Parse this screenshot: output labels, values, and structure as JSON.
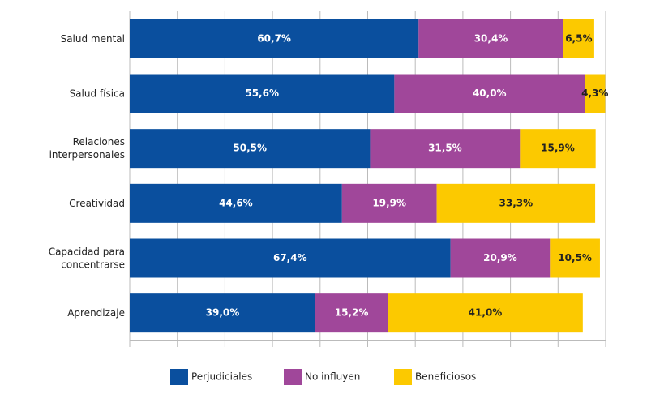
{
  "chart_data": {
    "type": "stacked_barh",
    "categories": [
      [
        "Salud mental"
      ],
      [
        "Salud física"
      ],
      [
        "Relaciones",
        "interpersonales"
      ],
      [
        "Creatividad"
      ],
      [
        "Capacidad para",
        "concentrarse"
      ],
      [
        "Aprendizaje"
      ]
    ],
    "series": [
      {
        "name": "Perjudiciales",
        "color": "#0a4f9e",
        "values": [
          60.7,
          55.6,
          50.5,
          44.6,
          67.4,
          39.0
        ],
        "value_labels": [
          "60,7%",
          "55,6%",
          "50,5%",
          "44,6%",
          "67,4%",
          "39,0%"
        ]
      },
      {
        "name": "No influyen",
        "color": "#a0479a",
        "values": [
          30.4,
          40.0,
          31.5,
          19.9,
          20.9,
          15.2
        ],
        "value_labels": [
          "30,4%",
          "40,0%",
          "31,5%",
          "19,9%",
          "20,9%",
          "15,2%"
        ]
      },
      {
        "name": "Beneficiosos",
        "color": "#fcc900",
        "values": [
          6.5,
          4.3,
          15.9,
          33.3,
          10.5,
          41.0
        ],
        "value_labels": [
          "6,5%",
          "4,3%",
          "15,9%",
          "33,3%",
          "10,5%",
          "41,0%"
        ]
      }
    ],
    "xlim": [
      0,
      100
    ],
    "xticks": [
      0,
      10,
      20,
      30,
      40,
      50,
      60,
      70,
      80,
      90,
      100
    ]
  }
}
